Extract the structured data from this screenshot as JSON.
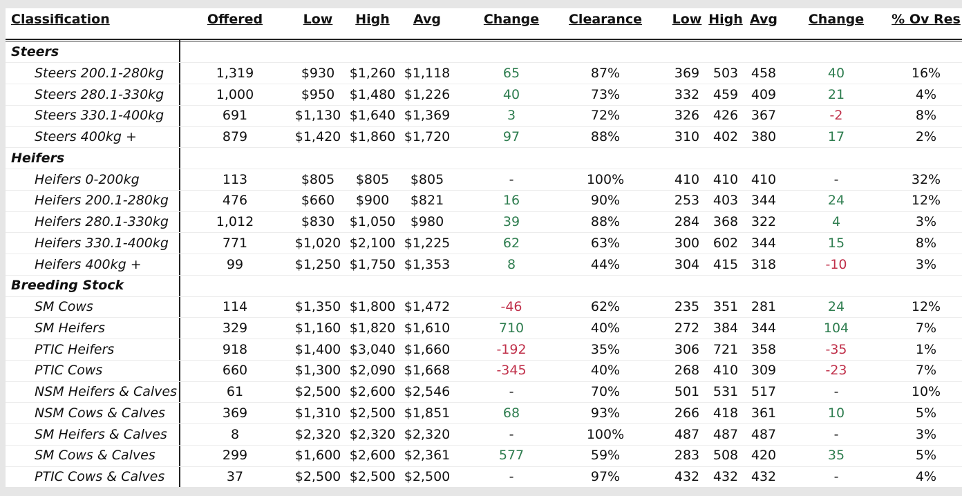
{
  "table": {
    "header": [
      "Classification",
      "Offered",
      "Low",
      "High",
      "Avg",
      "Change",
      "Clearance",
      "Low",
      "High",
      "Avg",
      "Change",
      "% Ov Res"
    ],
    "rows": [
      [
        "Steers"
      ],
      [
        "Steers 200.1-280kg",
        "1,319",
        "$930",
        "$1,260",
        "$1,118",
        "65",
        "87%",
        "369",
        "503",
        "458",
        "40",
        "16%"
      ],
      [
        "Steers 280.1-330kg",
        "1,000",
        "$950",
        "$1,480",
        "$1,226",
        "40",
        "73%",
        "332",
        "459",
        "409",
        "21",
        "4%"
      ],
      [
        "Steers 330.1-400kg",
        "691",
        "$1,130",
        "$1,640",
        "$1,369",
        "3",
        "72%",
        "326",
        "426",
        "367",
        "-2",
        "8%"
      ],
      [
        "Steers 400kg +",
        "879",
        "$1,420",
        "$1,860",
        "$1,720",
        "97",
        "88%",
        "310",
        "402",
        "380",
        "17",
        "2%"
      ],
      [
        "Heifers"
      ],
      [
        "Heifers 0-200kg",
        "113",
        "$805",
        "$805",
        "$805",
        "-",
        "100%",
        "410",
        "410",
        "410",
        "-",
        "32%"
      ],
      [
        "Heifers 200.1-280kg",
        "476",
        "$660",
        "$900",
        "$821",
        "16",
        "90%",
        "253",
        "403",
        "344",
        "24",
        "12%"
      ],
      [
        "Heifers 280.1-330kg",
        "1,012",
        "$830",
        "$1,050",
        "$980",
        "39",
        "88%",
        "284",
        "368",
        "322",
        "4",
        "3%"
      ],
      [
        "Heifers 330.1-400kg",
        "771",
        "$1,020",
        "$2,100",
        "$1,225",
        "62",
        "63%",
        "300",
        "602",
        "344",
        "15",
        "8%"
      ],
      [
        "Heifers 400kg +",
        "99",
        "$1,250",
        "$1,750",
        "$1,353",
        "8",
        "44%",
        "304",
        "415",
        "318",
        "-10",
        "3%"
      ],
      [
        "Breeding Stock"
      ],
      [
        "SM Cows",
        "114",
        "$1,350",
        "$1,800",
        "$1,472",
        "-46",
        "62%",
        "235",
        "351",
        "281",
        "24",
        "12%"
      ],
      [
        "SM Heifers",
        "329",
        "$1,160",
        "$1,820",
        "$1,610",
        "710",
        "40%",
        "272",
        "384",
        "344",
        "104",
        "7%"
      ],
      [
        "PTIC Heifers",
        "918",
        "$1,400",
        "$3,040",
        "$1,660",
        "-192",
        "35%",
        "306",
        "721",
        "358",
        "-35",
        "1%"
      ],
      [
        "PTIC Cows",
        "660",
        "$1,300",
        "$2,090",
        "$1,668",
        "-345",
        "40%",
        "268",
        "410",
        "309",
        "-23",
        "7%"
      ],
      [
        "NSM Heifers & Calves",
        "61",
        "$2,500",
        "$2,600",
        "$2,546",
        "-",
        "70%",
        "501",
        "531",
        "517",
        "-",
        "10%"
      ],
      [
        "NSM Cows & Calves",
        "369",
        "$1,310",
        "$2,500",
        "$1,851",
        "68",
        "93%",
        "266",
        "418",
        "361",
        "10",
        "5%"
      ],
      [
        "SM Heifers & Calves",
        "8",
        "$2,320",
        "$2,320",
        "$2,320",
        "-",
        "100%",
        "487",
        "487",
        "487",
        "-",
        "3%"
      ],
      [
        "SM Cows & Calves",
        "299",
        "$1,600",
        "$2,600",
        "$2,361",
        "577",
        "59%",
        "283",
        "508",
        "420",
        "35",
        "5%"
      ],
      [
        "PTIC Cows & Calves",
        "37",
        "$2,500",
        "$2,500",
        "$2,500",
        "-",
        "97%",
        "432",
        "432",
        "432",
        "-",
        "4%"
      ]
    ]
  }
}
